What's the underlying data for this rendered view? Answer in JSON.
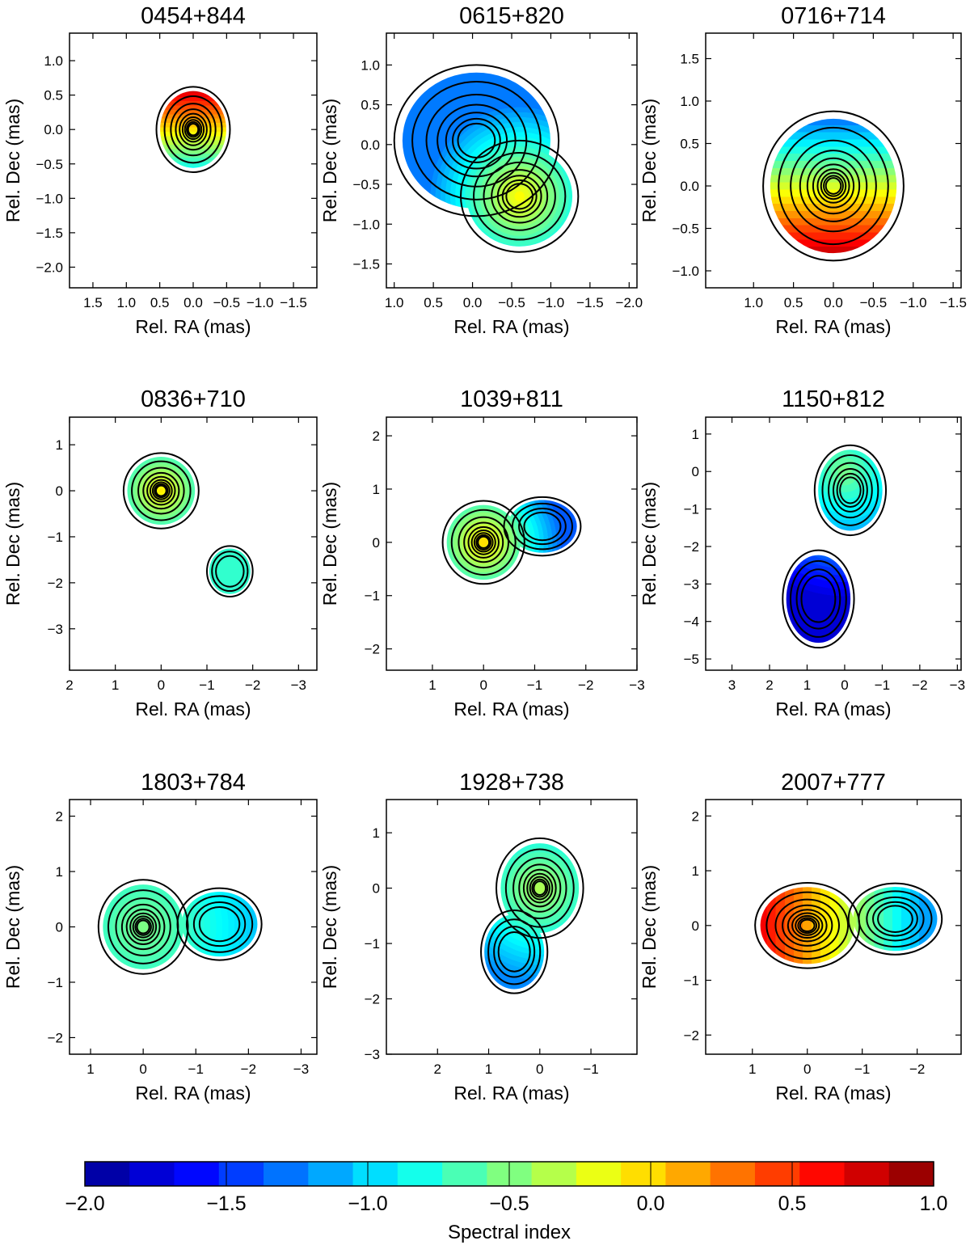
{
  "colormap": {
    "stops": [
      "#00008f",
      "#0000ff",
      "#0080ff",
      "#00ffff",
      "#80ff80",
      "#ffff00",
      "#ff8000",
      "#ff0000",
      "#800000"
    ],
    "vmin": -2.0,
    "vmax": 1.0,
    "levels": 19
  },
  "colorbar": {
    "label": "Spectral index",
    "ticks": [
      {
        "v": -2.0,
        "t": "−2.0"
      },
      {
        "v": -1.5,
        "t": "−1.5"
      },
      {
        "v": -1.0,
        "t": "−1.0"
      },
      {
        "v": -0.5,
        "t": "−0.5"
      },
      {
        "v": 0.0,
        "t": "0.0"
      },
      {
        "v": 0.5,
        "t": "0.5"
      },
      {
        "v": 1.0,
        "t": "1.0"
      }
    ]
  },
  "chart_data": [
    {
      "type": "contour",
      "title": "0454+844",
      "xlabel": "Rel. RA (mas)",
      "ylabel": "Rel. Dec (mas)",
      "xlim": [
        1.85,
        -1.85
      ],
      "ylim": [
        -2.3,
        1.4
      ],
      "xticks": [
        {
          "v": 1.5,
          "t": "1.5"
        },
        {
          "v": 1.0,
          "t": "1.0"
        },
        {
          "v": 0.5,
          "t": "0.5"
        },
        {
          "v": 0.0,
          "t": "0.0"
        },
        {
          "v": -0.5,
          "t": "−0.5"
        },
        {
          "v": -1.0,
          "t": "−1.0"
        },
        {
          "v": -1.5,
          "t": "−1.5"
        }
      ],
      "yticks": [
        {
          "v": 1.0,
          "t": "1.0"
        },
        {
          "v": 0.5,
          "t": "0.5"
        },
        {
          "v": 0.0,
          "t": "0.0"
        },
        {
          "v": -0.5,
          "t": "−0.5"
        },
        {
          "v": -1.0,
          "t": "−1.0"
        },
        {
          "v": -1.5,
          "t": "−1.5"
        },
        {
          "v": -2.0,
          "t": "−2.0"
        }
      ],
      "components": [
        {
          "x": 0.0,
          "y": 0.0,
          "rx": 0.55,
          "ry": 0.62,
          "n": 9
        }
      ],
      "spectral_index": {
        "type": "gradient",
        "axis": "y",
        "from": -0.6,
        "to": 0.6,
        "alpha_from": -0.9,
        "alpha_to": 0.8
      }
    },
    {
      "type": "contour",
      "title": "0615+820",
      "xlabel": "Rel. RA (mas)",
      "ylabel": "Rel. Dec (mas)",
      "xlim": [
        1.1,
        -2.1
      ],
      "ylim": [
        -1.8,
        1.4
      ],
      "xticks": [
        {
          "v": 1.0,
          "t": "1.0"
        },
        {
          "v": 0.5,
          "t": "0.5"
        },
        {
          "v": 0.0,
          "t": "0.0"
        },
        {
          "v": -0.5,
          "t": "−0.5"
        },
        {
          "v": -1.0,
          "t": "−1.0"
        },
        {
          "v": -1.5,
          "t": "−1.5"
        },
        {
          "v": -2.0,
          "t": "−2.0"
        }
      ],
      "yticks": [
        {
          "v": 1.0,
          "t": "1.0"
        },
        {
          "v": 0.5,
          "t": "0.5"
        },
        {
          "v": 0.0,
          "t": "0.0"
        },
        {
          "v": -0.5,
          "t": "−0.5"
        },
        {
          "v": -1.0,
          "t": "−1.0"
        },
        {
          "v": -1.5,
          "t": "−1.5"
        }
      ],
      "components": [
        {
          "x": -0.05,
          "y": 0.05,
          "rx": 1.05,
          "ry": 0.95,
          "n": 7
        },
        {
          "x": -0.6,
          "y": -0.65,
          "rx": 0.75,
          "ry": 0.7,
          "n": 7
        }
      ],
      "spectral_index": {
        "type": "radial",
        "cx": -0.6,
        "cy": -0.65,
        "r": 1.2,
        "alpha_center": -0.1,
        "alpha_edge": -1.3
      }
    },
    {
      "type": "contour",
      "title": "0716+714",
      "xlabel": "Rel. RA (mas)",
      "ylabel": "Rel. Dec (mas)",
      "xlim": [
        1.6,
        -1.6
      ],
      "ylim": [
        -1.2,
        1.8
      ],
      "xticks": [
        {
          "v": 1.0,
          "t": "1.0"
        },
        {
          "v": 0.5,
          "t": "0.5"
        },
        {
          "v": 0.0,
          "t": "0.0"
        },
        {
          "v": -0.5,
          "t": "−0.5"
        },
        {
          "v": -1.0,
          "t": "−1.0"
        },
        {
          "v": -1.5,
          "t": "−1.5"
        }
      ],
      "yticks": [
        {
          "v": 1.5,
          "t": "1.5"
        },
        {
          "v": 1.0,
          "t": "1.0"
        },
        {
          "v": 0.5,
          "t": "0.5"
        },
        {
          "v": 0.0,
          "t": "0.0"
        },
        {
          "v": -0.5,
          "t": "−0.5"
        },
        {
          "v": -1.0,
          "t": "−1.0"
        }
      ],
      "components": [
        {
          "x": 0.0,
          "y": 0.0,
          "rx": 0.88,
          "ry": 0.88,
          "n": 10
        }
      ],
      "spectral_index": {
        "type": "gradient",
        "axis": "y",
        "from": 0.8,
        "to": -0.8,
        "alpha_from": -1.3,
        "alpha_to": 0.8
      }
    },
    {
      "type": "contour",
      "title": "0836+710",
      "xlabel": "Rel. RA (mas)",
      "ylabel": "Rel. Dec (mas)",
      "xlim": [
        2.0,
        -3.4
      ],
      "ylim": [
        -3.9,
        1.6
      ],
      "xticks": [
        {
          "v": 2,
          "t": "2"
        },
        {
          "v": 1,
          "t": "1"
        },
        {
          "v": 0,
          "t": "0"
        },
        {
          "v": -1,
          "t": "−1"
        },
        {
          "v": -2,
          "t": "−2"
        },
        {
          "v": -3,
          "t": "−3"
        }
      ],
      "yticks": [
        {
          "v": 1,
          "t": "1"
        },
        {
          "v": 0,
          "t": "0"
        },
        {
          "v": -1,
          "t": "−1"
        },
        {
          "v": -2,
          "t": "−2"
        },
        {
          "v": -3,
          "t": "−3"
        }
      ],
      "components": [
        {
          "x": 0.0,
          "y": 0.0,
          "rx": 0.82,
          "ry": 0.82,
          "n": 9
        },
        {
          "x": -1.5,
          "y": -1.75,
          "rx": 0.5,
          "ry": 0.55,
          "n": 3
        }
      ],
      "spectral_index": {
        "type": "radial",
        "cx": 0.0,
        "cy": 0.0,
        "r": 0.85,
        "alpha_center": -0.05,
        "alpha_edge": -0.75
      }
    },
    {
      "type": "contour",
      "title": "1039+811",
      "xlabel": "Rel. RA (mas)",
      "ylabel": "Rel. Dec (mas)",
      "xlim": [
        1.9,
        -3.0
      ],
      "ylim": [
        -2.4,
        2.35
      ],
      "xticks": [
        {
          "v": 1,
          "t": "1"
        },
        {
          "v": 0,
          "t": "0"
        },
        {
          "v": -1,
          "t": "−1"
        },
        {
          "v": -2,
          "t": "−2"
        },
        {
          "v": -3,
          "t": "−3"
        }
      ],
      "yticks": [
        {
          "v": 2,
          "t": "2"
        },
        {
          "v": 1,
          "t": "1"
        },
        {
          "v": 0,
          "t": "0"
        },
        {
          "v": -1,
          "t": "−1"
        },
        {
          "v": -2,
          "t": "−2"
        }
      ],
      "components": [
        {
          "x": 0.0,
          "y": 0.0,
          "rx": 0.8,
          "ry": 0.78,
          "n": 9
        },
        {
          "x": -1.15,
          "y": 0.3,
          "rx": 0.75,
          "ry": 0.55,
          "n": 4
        }
      ],
      "spectral_index": {
        "type": "radial",
        "cx": 0.0,
        "cy": 0.0,
        "r": 1.6,
        "alpha_center": 0.0,
        "alpha_edge": -1.4
      }
    },
    {
      "type": "contour",
      "title": "1150+812",
      "xlabel": "Rel. RA (mas)",
      "ylabel": "Rel. Dec (mas)",
      "xlim": [
        3.7,
        -3.1
      ],
      "ylim": [
        -5.3,
        1.45
      ],
      "xticks": [
        {
          "v": 3,
          "t": "3"
        },
        {
          "v": 2,
          "t": "2"
        },
        {
          "v": 1,
          "t": "1"
        },
        {
          "v": 0,
          "t": "0"
        },
        {
          "v": -1,
          "t": "−1"
        },
        {
          "v": -2,
          "t": "−2"
        },
        {
          "v": -3,
          "t": "−3"
        }
      ],
      "yticks": [
        {
          "v": 1,
          "t": "1"
        },
        {
          "v": 0,
          "t": "0"
        },
        {
          "v": -1,
          "t": "−1"
        },
        {
          "v": -2,
          "t": "−2"
        },
        {
          "v": -3,
          "t": "−3"
        },
        {
          "v": -4,
          "t": "−4"
        },
        {
          "v": -5,
          "t": "−5"
        }
      ],
      "components": [
        {
          "x": -0.15,
          "y": -0.5,
          "rx": 0.95,
          "ry": 1.2,
          "n": 6
        },
        {
          "x": 0.7,
          "y": -3.4,
          "rx": 0.95,
          "ry": 1.3,
          "n": 4
        }
      ],
      "spectral_index": {
        "type": "radial",
        "cx": 0.0,
        "cy": 0.0,
        "r": 3.5,
        "alpha_center": -0.5,
        "alpha_edge": -1.8
      }
    },
    {
      "type": "contour",
      "title": "1803+784",
      "xlabel": "Rel. RA (mas)",
      "ylabel": "Rel. Dec (mas)",
      "xlim": [
        1.4,
        -3.3
      ],
      "ylim": [
        -2.3,
        2.3
      ],
      "xticks": [
        {
          "v": 1,
          "t": "1"
        },
        {
          "v": 0,
          "t": "0"
        },
        {
          "v": -1,
          "t": "−1"
        },
        {
          "v": -2,
          "t": "−2"
        },
        {
          "v": -3,
          "t": "−3"
        }
      ],
      "yticks": [
        {
          "v": 2,
          "t": "2"
        },
        {
          "v": 1,
          "t": "1"
        },
        {
          "v": 0,
          "t": "0"
        },
        {
          "v": -1,
          "t": "−1"
        },
        {
          "v": -2,
          "t": "−2"
        }
      ],
      "components": [
        {
          "x": 0.0,
          "y": 0.0,
          "rx": 0.85,
          "ry": 0.85,
          "n": 9
        },
        {
          "x": -1.45,
          "y": 0.05,
          "rx": 0.8,
          "ry": 0.65,
          "n": 4
        }
      ],
      "spectral_index": {
        "type": "radial",
        "cx": 0.0,
        "cy": 0.0,
        "r": 2.2,
        "alpha_center": -0.5,
        "alpha_edge": -1.05
      }
    },
    {
      "type": "contour",
      "title": "1928+738",
      "xlabel": "Rel. RA (mas)",
      "ylabel": "Rel. Dec (mas)",
      "xlim": [
        3.0,
        -1.9
      ],
      "ylim": [
        -3.0,
        1.6
      ],
      "xticks": [
        {
          "v": 2,
          "t": "2"
        },
        {
          "v": 1,
          "t": "1"
        },
        {
          "v": 0,
          "t": "0"
        },
        {
          "v": -1,
          "t": "−1"
        }
      ],
      "yticks": [
        {
          "v": 1,
          "t": "1"
        },
        {
          "v": 0,
          "t": "0"
        },
        {
          "v": -1,
          "t": "−1"
        },
        {
          "v": -2,
          "t": "−2"
        },
        {
          "v": -3,
          "t": "−3"
        }
      ],
      "components": [
        {
          "x": 0.0,
          "y": 0.0,
          "rx": 0.85,
          "ry": 0.9,
          "n": 9
        },
        {
          "x": 0.5,
          "y": -1.15,
          "rx": 0.65,
          "ry": 0.75,
          "n": 4
        }
      ],
      "spectral_index": {
        "type": "radial",
        "cx": 0.0,
        "cy": 0.0,
        "r": 1.9,
        "alpha_center": -0.35,
        "alpha_edge": -1.25
      }
    },
    {
      "type": "contour",
      "title": "2007+777",
      "xlabel": "Rel. RA (mas)",
      "ylabel": "Rel. Dec (mas)",
      "xlim": [
        1.85,
        -2.8
      ],
      "ylim": [
        -2.35,
        2.3
      ],
      "xticks": [
        {
          "v": 1,
          "t": "1"
        },
        {
          "v": 0,
          "t": "0"
        },
        {
          "v": -1,
          "t": "−1"
        },
        {
          "v": -2,
          "t": "−2"
        }
      ],
      "yticks": [
        {
          "v": 2,
          "t": "2"
        },
        {
          "v": 1,
          "t": "1"
        },
        {
          "v": 0,
          "t": "0"
        },
        {
          "v": -1,
          "t": "−1"
        },
        {
          "v": -2,
          "t": "−2"
        }
      ],
      "components": [
        {
          "x": 0.0,
          "y": 0.0,
          "rx": 0.95,
          "ry": 0.78,
          "n": 9
        },
        {
          "x": -1.6,
          "y": 0.12,
          "rx": 0.85,
          "ry": 0.65,
          "n": 5
        }
      ],
      "spectral_index": {
        "type": "gradient",
        "axis": "x",
        "from": 0.9,
        "to": -2.2,
        "alpha_from": 0.7,
        "alpha_to": -1.2
      }
    }
  ]
}
